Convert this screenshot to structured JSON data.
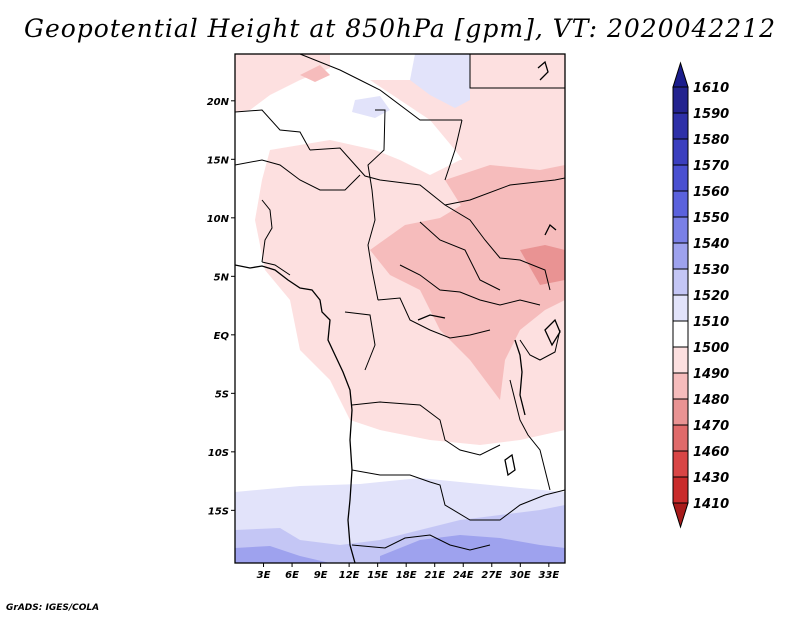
{
  "title": "Geopotential Height at 850hPa [gpm], VT: 2020042212",
  "credit": "GrADS: IGES/COLA",
  "map": {
    "lon_range": [
      0,
      34.7
    ],
    "lat_range": [
      -19.5,
      24
    ],
    "lon_ticks": [
      "3E",
      "6E",
      "9E",
      "12E",
      "15E",
      "18E",
      "21E",
      "24E",
      "27E",
      "30E",
      "33E"
    ],
    "lat_ticks": [
      "20N",
      "15N",
      "10N",
      "5N",
      "EQ",
      "5S",
      "10S",
      "15S"
    ]
  },
  "colorbar": {
    "labels": [
      "1610",
      "1590",
      "1580",
      "1570",
      "1560",
      "1550",
      "1540",
      "1530",
      "1520",
      "1510",
      "1500",
      "1490",
      "1480",
      "1470",
      "1460",
      "1430",
      "1410"
    ],
    "colors": [
      "#1b1d8c",
      "#23238f",
      "#2e30a8",
      "#3b3fbf",
      "#4a50d1",
      "#5b62dd",
      "#7a80e6",
      "#9ea2ee",
      "#c4c6f5",
      "#e2e3fa",
      "#ffffff",
      "#fde0e0",
      "#f6bcbc",
      "#e99393",
      "#e06a6a",
      "#d84545",
      "#c92b2b",
      "#a81b1b"
    ]
  }
}
